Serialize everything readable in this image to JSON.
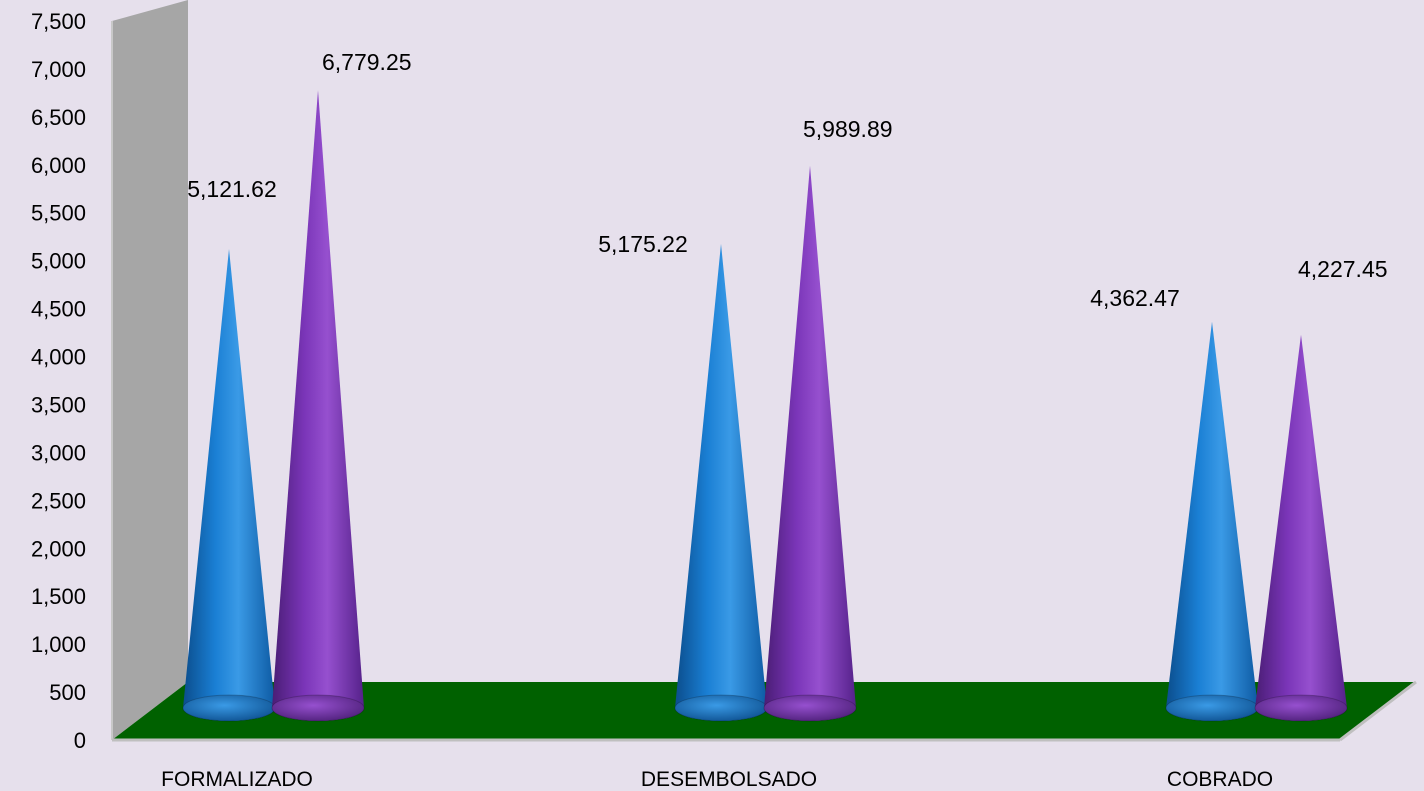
{
  "chart_data": {
    "type": "bar",
    "bar_shape": "cone-3d",
    "categories": [
      "FORMALIZADO",
      "DESEMBOLSADO",
      "COBRADO"
    ],
    "series": [
      {
        "values": [
          5121.62,
          5175.22,
          4362.47
        ],
        "color": "#1a7fd4"
      },
      {
        "values": [
          6779.25,
          5989.89,
          4227.45
        ],
        "color": "#7a35b8"
      }
    ],
    "data_labels": [
      [
        "5,121.62",
        "5,175.22",
        "4,362.47"
      ],
      [
        "6,779.25",
        "5,989.89",
        "4,227.45"
      ]
    ],
    "y_ticks": [
      "0",
      "500",
      "1,000",
      "1,500",
      "2,000",
      "2,500",
      "3,000",
      "3,500",
      "4,000",
      "4,500",
      "5,000",
      "5,500",
      "6,000",
      "6,500",
      "7,000",
      "7,500"
    ],
    "ylim": [
      0,
      7500
    ],
    "title": "",
    "xlabel": "",
    "ylabel": "",
    "grid": false,
    "legend": "none",
    "colors": {
      "background": "#e6e0ec",
      "wall": "#a6a6a6",
      "floor": "#006100"
    }
  }
}
